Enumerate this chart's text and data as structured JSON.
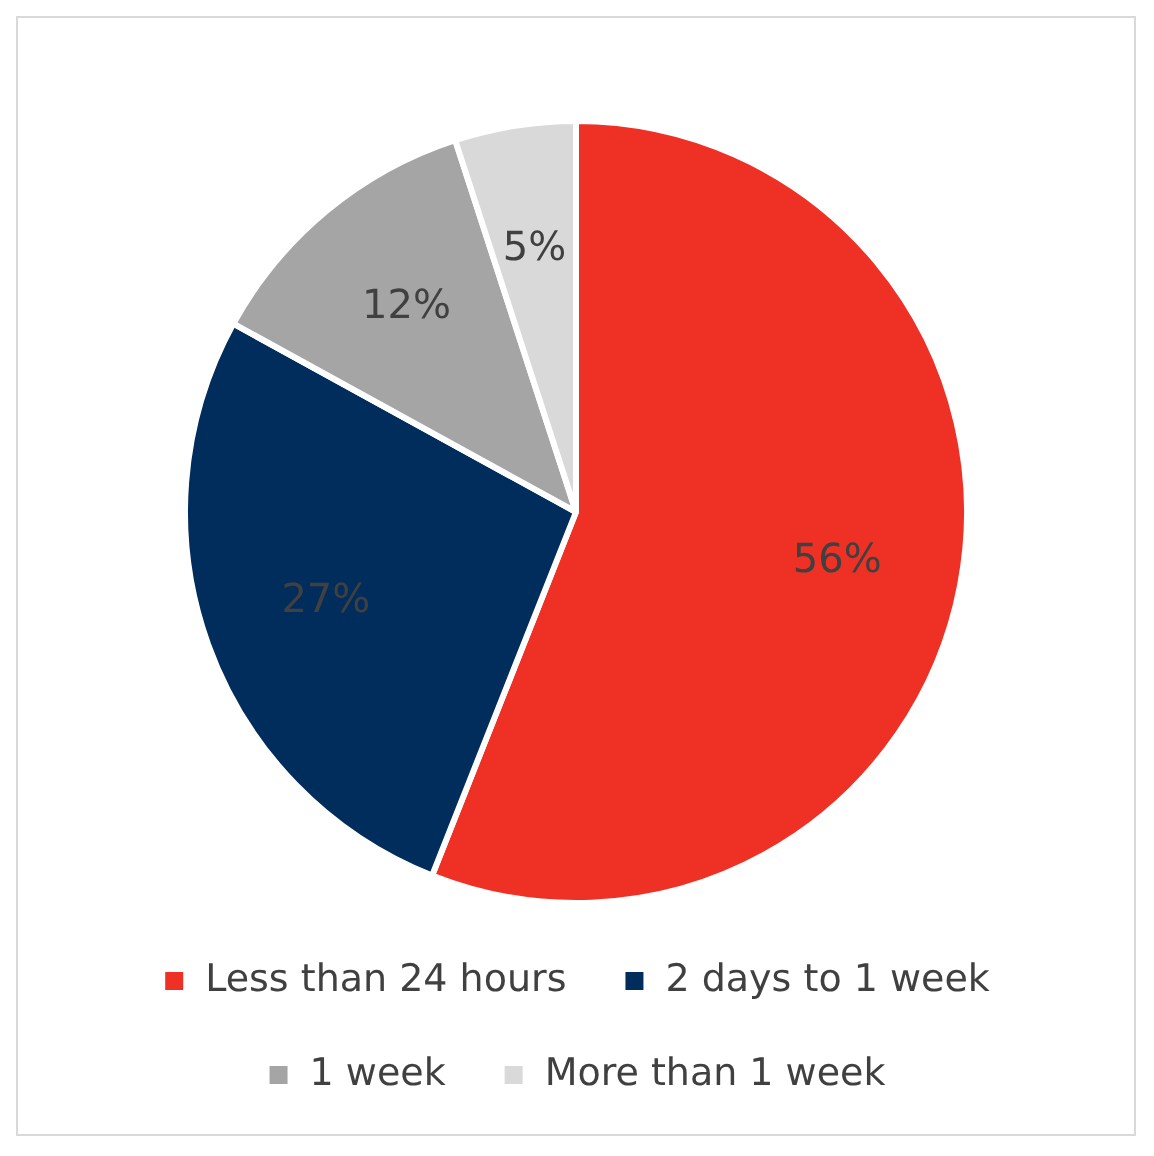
{
  "chart_data": {
    "type": "pie",
    "categories": [
      "Less than 24 hours",
      "2 days to 1 week",
      "1 week",
      "More than 1 week"
    ],
    "values": [
      56,
      27,
      12,
      5
    ],
    "colors": [
      "#ee3124",
      "#002d5c",
      "#a5a5a5",
      "#d9d9d9"
    ],
    "value_labels": [
      "56%",
      "27%",
      "12%",
      "5%"
    ],
    "legend": "bottom"
  }
}
